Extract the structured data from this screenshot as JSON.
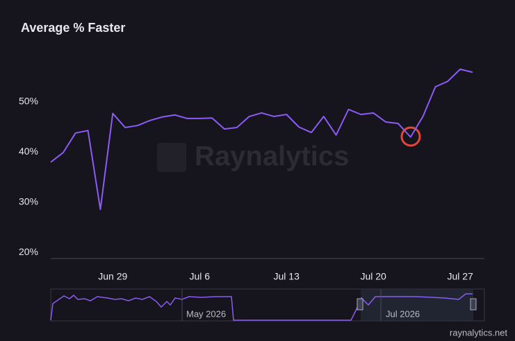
{
  "chart_data": {
    "type": "line",
    "title": "Average % Faster",
    "categories": [
      null,
      null,
      null,
      null,
      null,
      "Jun 29",
      null,
      null,
      null,
      null,
      null,
      null,
      "Jul 6",
      null,
      null,
      null,
      null,
      null,
      null,
      "Jul 13",
      null,
      null,
      null,
      null,
      null,
      null,
      "Jul 20",
      null,
      null,
      null,
      null,
      null,
      null,
      "Jul 27",
      null
    ],
    "series": [
      {
        "color": "#8b5cf6",
        "values": [
          38.0,
          39.9,
          43.8,
          44.3,
          28.6,
          47.7,
          44.9,
          45.3,
          46.3,
          47.0,
          47.4,
          46.7,
          46.7,
          46.8,
          44.6,
          44.9,
          47.1,
          47.8,
          47.1,
          47.5,
          45.0,
          43.9,
          47.1,
          43.4,
          48.5,
          47.5,
          47.8,
          46.0,
          45.7,
          43.0,
          47.1,
          53.0,
          54.1,
          56.5,
          55.9
        ]
      }
    ],
    "ylim": [
      18.8,
      60.4
    ],
    "yticks": [
      {
        "value": 20,
        "label": "20%"
      },
      {
        "value": 30,
        "label": "30%"
      },
      {
        "value": 40,
        "label": "40%"
      },
      {
        "value": 50,
        "label": "50%"
      }
    ],
    "grid": false,
    "watermark": "Raynalytics",
    "navigator_labels": [
      "May 2026",
      "Jul 2026"
    ],
    "source": "raynalytics.net"
  }
}
